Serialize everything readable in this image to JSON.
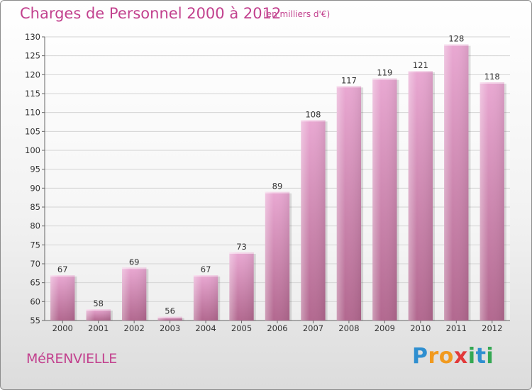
{
  "header": {
    "title": "Charges de Personnel 2000 à 2012",
    "subtitle": "(en milliers d'€)"
  },
  "footer": {
    "commune": "MéRENVIELLE",
    "brand": [
      "P",
      "r",
      "o",
      "x",
      "i",
      "t",
      "i"
    ]
  },
  "colors": {
    "accent": "#c2418e",
    "bar_light": "#e9a8d2",
    "bar_dark": "#b2688f",
    "grid": "#d4d4d4"
  },
  "chart_data": {
    "type": "bar",
    "title": "Charges de Personnel 2000 à 2012",
    "subtitle": "(en milliers d'€)",
    "categories": [
      "2000",
      "2001",
      "2002",
      "2003",
      "2004",
      "2005",
      "2006",
      "2007",
      "2008",
      "2009",
      "2010",
      "2011",
      "2012"
    ],
    "values": [
      67,
      58,
      69,
      56,
      67,
      73,
      89,
      108,
      117,
      119,
      121,
      128,
      118
    ],
    "ylim": [
      55,
      130
    ],
    "yticks": [
      55,
      60,
      65,
      70,
      75,
      80,
      85,
      90,
      95,
      100,
      105,
      110,
      115,
      120,
      125,
      130
    ],
    "grid": true,
    "legend": "none"
  }
}
